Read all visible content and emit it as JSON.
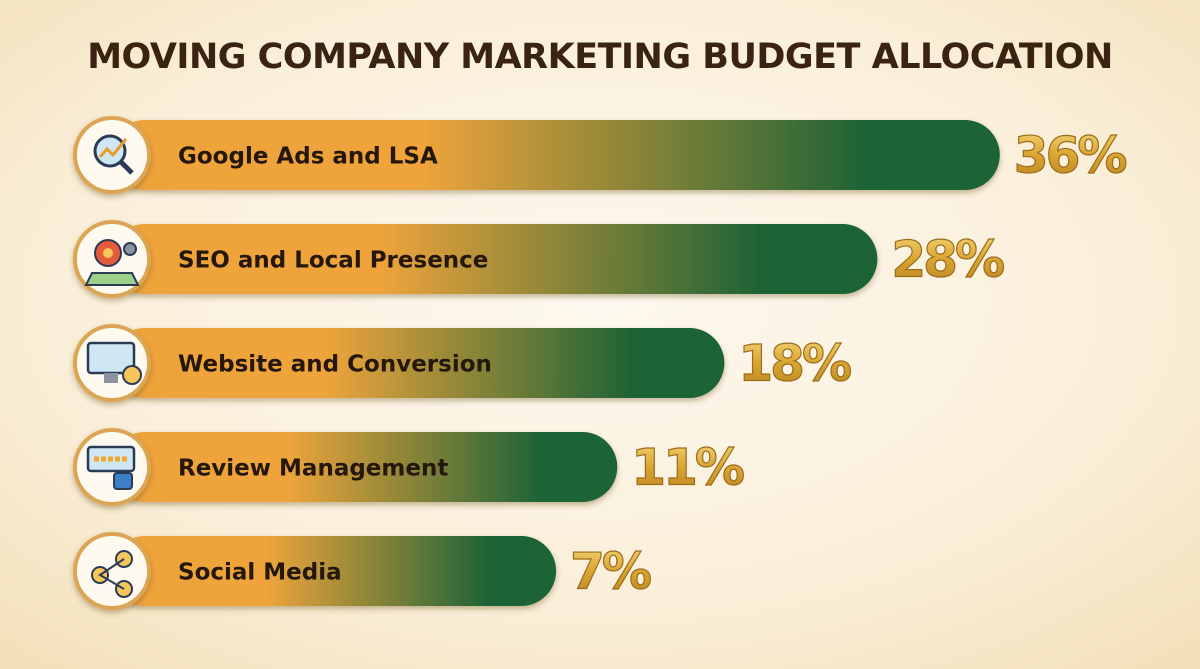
{
  "chart_data": {
    "type": "bar",
    "orientation": "horizontal",
    "title": "MOVING COMPANY MARKETING BUDGET ALLOCATION",
    "categories": [
      "Google Ads and LSA",
      "SEO and Local Presence",
      "Website and Conversion",
      "Review Management",
      "Social Media"
    ],
    "values": [
      36,
      28,
      18,
      11,
      7
    ],
    "value_labels": [
      "36%",
      "28%",
      "18%",
      "11%",
      "7%"
    ],
    "colors": [
      "#eea43b",
      "#1d6336"
    ]
  }
}
